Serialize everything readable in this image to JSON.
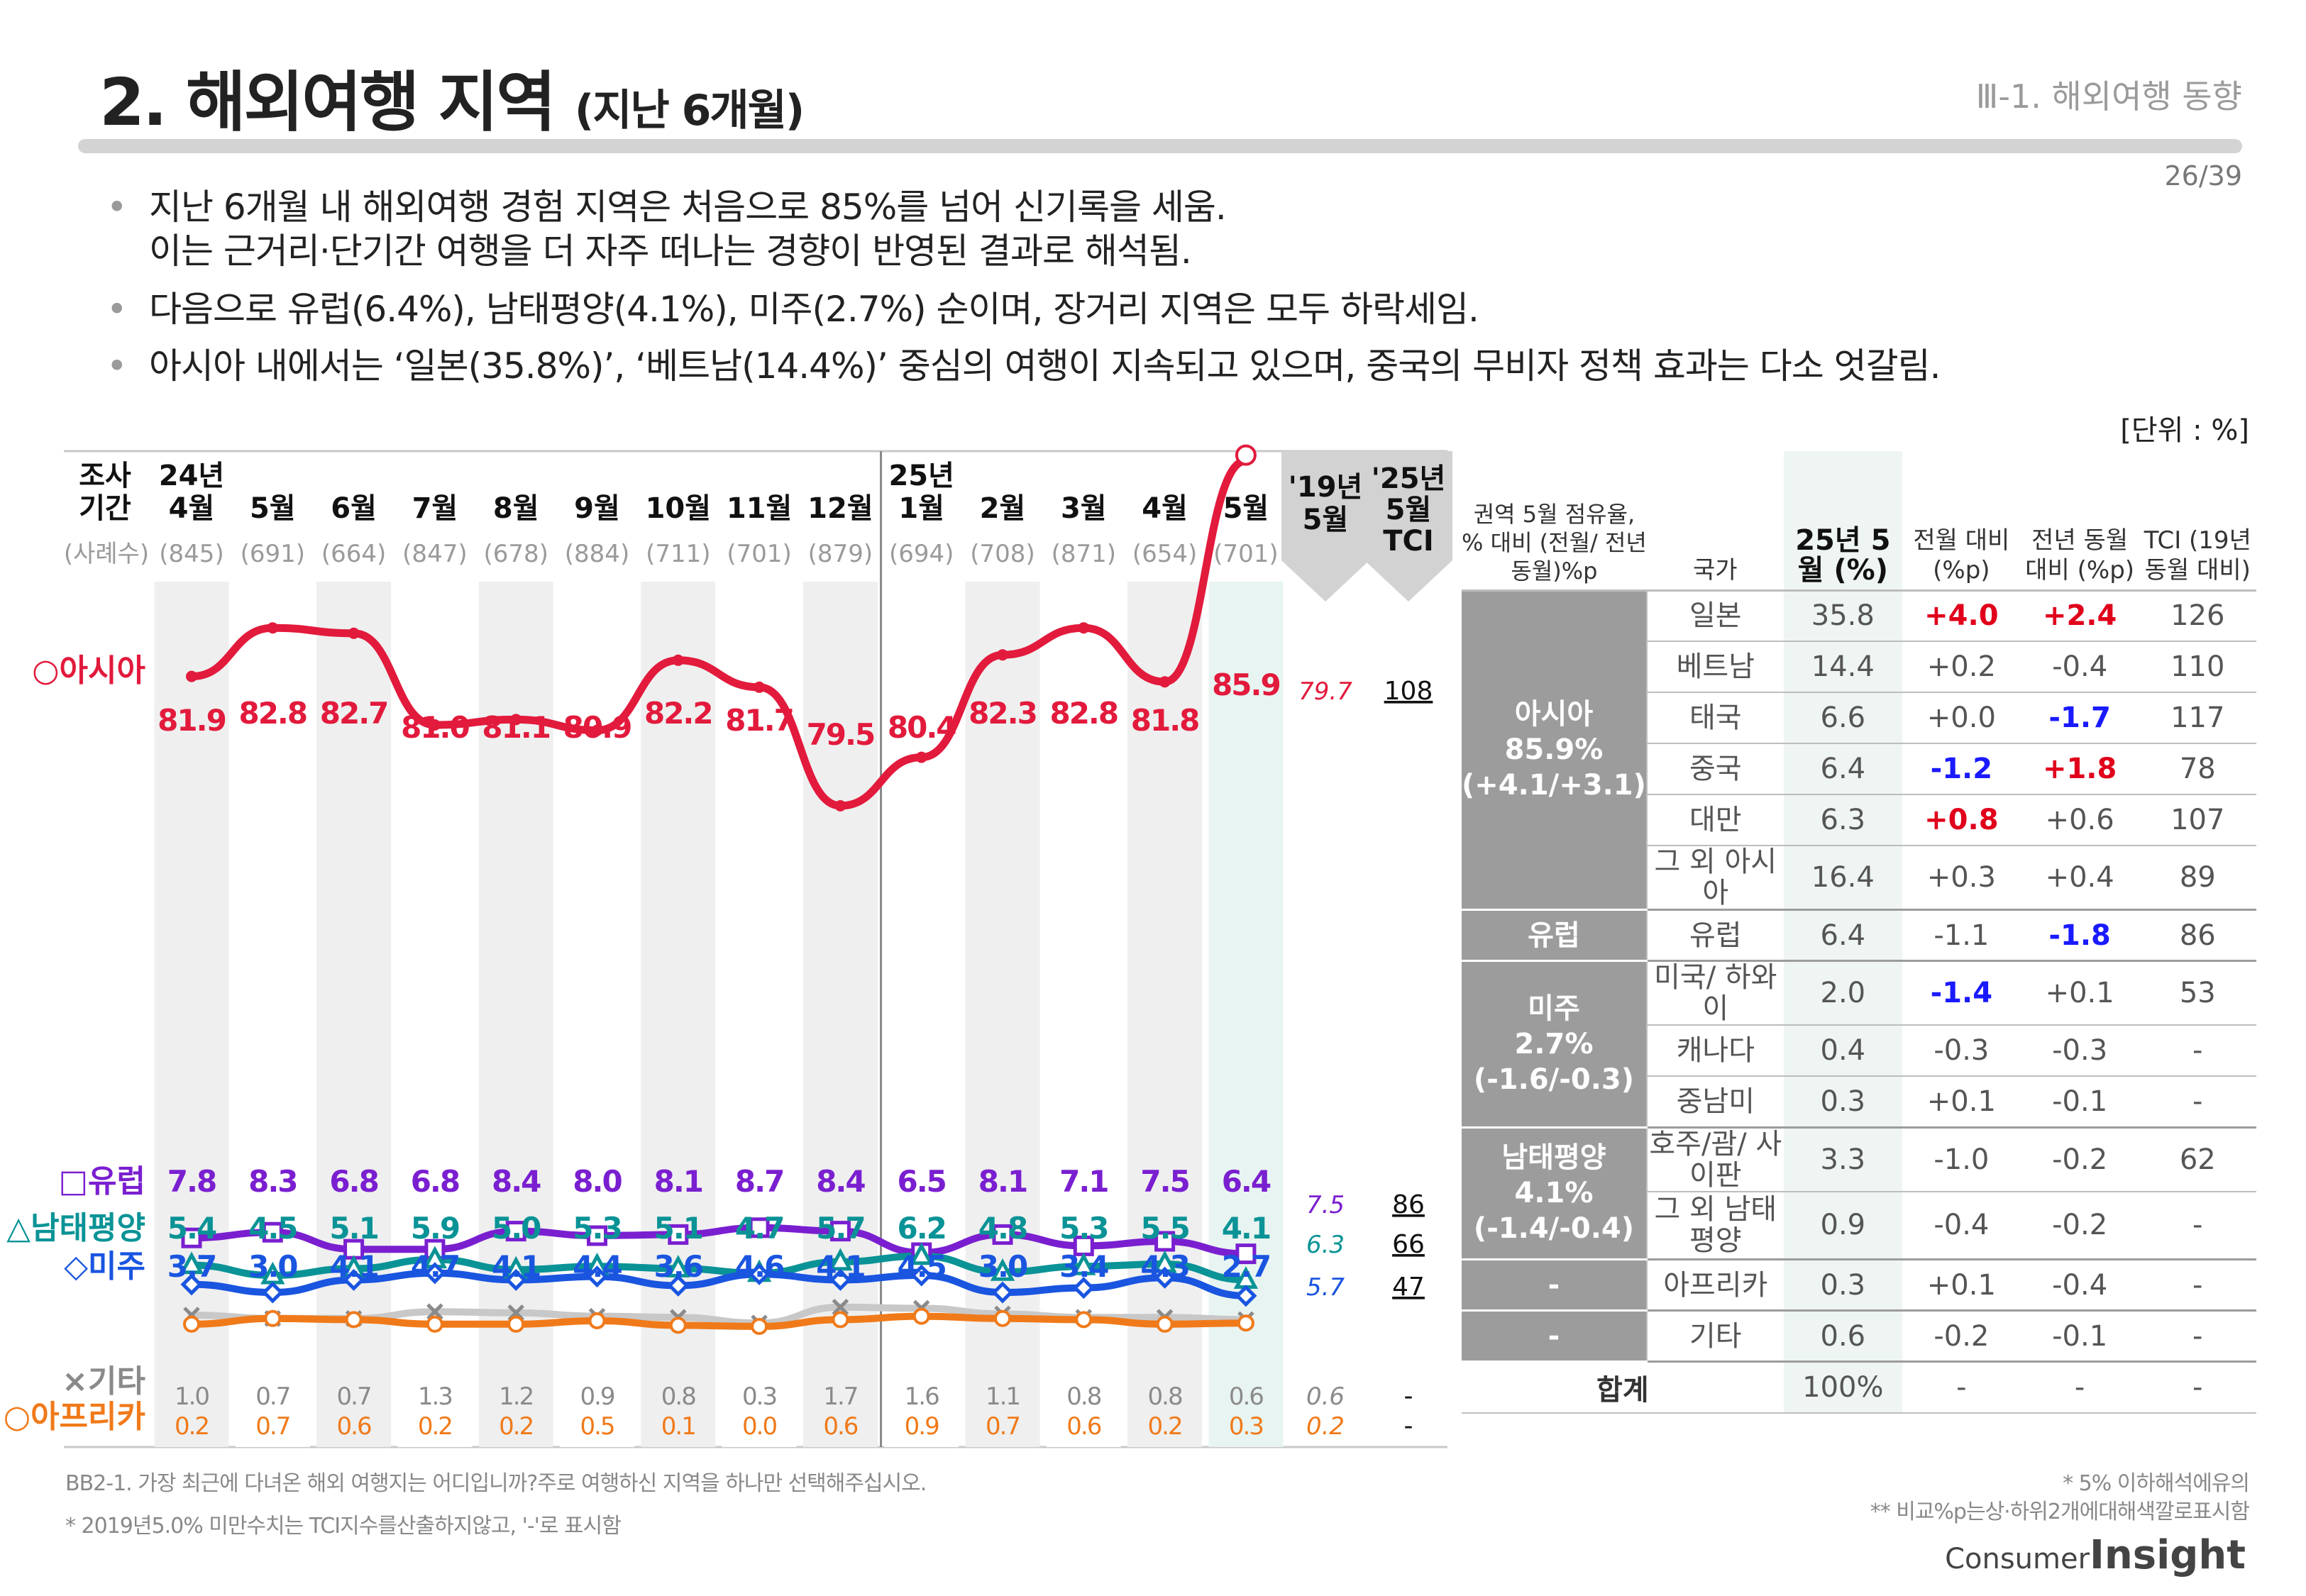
{
  "header": {
    "title": "2. 해외여행 지역",
    "title_sub": "(지난 6개월)",
    "section": "Ⅲ-1. 해외여행 동향",
    "page": "26/39"
  },
  "bullets": [
    "지난 6개월 내 해외여행 경험 지역은 처음으로 85%를 넘어 신기록을 세움.",
    "이는 근거리·단기간 여행을 더 자주 떠나는 경향이 반영된 결과로 해석됨.",
    "다음으로 유럽(6.4%), 남태평양(4.1%), 미주(2.7%) 순이며, 장거리 지역은 모두 하락세임.",
    "아시아 내에서는 ‘일본(35.8%)’, ‘베트남(14.4%)’ 중심의 여행이 지속되고 있으며, 중국의 무비자 정책 효과는 다소 엇갈림."
  ],
  "unit": "[단위 : %]",
  "chart_data": {
    "type": "line",
    "title": "해외여행 지역 (지난 6개월)",
    "header_label": [
      "조사",
      "기간"
    ],
    "sample_label": "(사례수)",
    "periods": [
      {
        "year": "24년",
        "month": "4월",
        "n": "(845)"
      },
      {
        "year": "",
        "month": "5월",
        "n": "(691)"
      },
      {
        "year": "",
        "month": "6월",
        "n": "(664)"
      },
      {
        "year": "",
        "month": "7월",
        "n": "(847)"
      },
      {
        "year": "",
        "month": "8월",
        "n": "(678)"
      },
      {
        "year": "",
        "month": "9월",
        "n": "(884)"
      },
      {
        "year": "",
        "month": "10월",
        "n": "(711)"
      },
      {
        "year": "",
        "month": "11월",
        "n": "(701)"
      },
      {
        "year": "",
        "month": "12월",
        "n": "(879)"
      },
      {
        "year": "25년",
        "month": "1월",
        "n": "(694)"
      },
      {
        "year": "",
        "month": "2월",
        "n": "(708)"
      },
      {
        "year": "",
        "month": "3월",
        "n": "(871)"
      },
      {
        "year": "",
        "month": "4월",
        "n": "(654)"
      },
      {
        "year": "",
        "month": "5월",
        "n": "(701)"
      }
    ],
    "ref_headers": [
      [
        "'19년",
        "5월"
      ],
      [
        "'25년",
        "5월",
        "TCI"
      ]
    ],
    "series": [
      {
        "name": "아시아",
        "marker": "○",
        "color": "#e21a3c",
        "values": [
          81.9,
          82.8,
          82.7,
          81.0,
          81.1,
          80.9,
          82.2,
          81.7,
          79.5,
          80.4,
          82.3,
          82.8,
          81.8,
          85.9
        ],
        "labels": [
          "81.9",
          "82.8",
          "82.7",
          "81.0",
          "81.1",
          "80.9",
          "82.2",
          "81.7",
          "79.5",
          "80.4",
          "82.3",
          "82.8",
          "81.8",
          "85.9"
        ],
        "ref": "79.7",
        "tci": "108"
      },
      {
        "name": "유럽",
        "marker": "□",
        "color": "#7a1fd0",
        "values": [
          7.8,
          8.3,
          6.8,
          6.8,
          8.4,
          8.0,
          8.1,
          8.7,
          8.4,
          6.5,
          8.1,
          7.1,
          7.5,
          6.4
        ],
        "labels": [
          "7.8",
          "8.3",
          "6.8",
          "6.8",
          "8.4",
          "8.0",
          "8.1",
          "8.7",
          "8.4",
          "6.5",
          "8.1",
          "7.1",
          "7.5",
          "6.4"
        ],
        "ref": "7.5",
        "tci": "86"
      },
      {
        "name": "남태평양",
        "marker": "△",
        "color": "#0a9396",
        "values": [
          5.4,
          4.5,
          5.1,
          5.9,
          5.0,
          5.3,
          5.1,
          4.7,
          5.7,
          6.2,
          4.8,
          5.3,
          5.5,
          4.1
        ],
        "labels": [
          "5.4",
          "4.5",
          "5.1",
          "5.9",
          "5.0",
          "5.3",
          "5.1",
          "4.7",
          "5.7",
          "6.2",
          "4.8",
          "5.3",
          "5.5",
          "4.1"
        ],
        "ref": "6.3",
        "tci": "66"
      },
      {
        "name": "미주",
        "marker": "◇",
        "color": "#1a55e0",
        "values": [
          3.7,
          3.0,
          4.1,
          4.7,
          4.1,
          4.4,
          3.6,
          4.6,
          4.1,
          4.5,
          3.0,
          3.4,
          4.3,
          2.7
        ],
        "labels": [
          "3.7",
          "3.0",
          "4.1",
          "4.7",
          "4.1",
          "4.4",
          "3.6",
          "4.6",
          "4.1",
          "4.5",
          "3.0",
          "3.4",
          "4.3",
          "2.7"
        ],
        "ref": "5.7",
        "tci": "47"
      },
      {
        "name": "기타",
        "marker": "×",
        "color": "#8a8a8a",
        "values": [
          1.0,
          0.7,
          0.7,
          1.3,
          1.2,
          0.9,
          0.8,
          0.3,
          1.7,
          1.6,
          1.1,
          0.8,
          0.8,
          0.6
        ],
        "labels": [
          "1.0",
          "0.7",
          "0.7",
          "1.3",
          "1.2",
          "0.9",
          "0.8",
          "0.3",
          "1.7",
          "1.6",
          "1.1",
          "0.8",
          "0.8",
          "0.6"
        ],
        "ref": "0.6",
        "tci": "-"
      },
      {
        "name": "아프리카",
        "marker": "○",
        "color": "#f07a1a",
        "values": [
          0.2,
          0.7,
          0.6,
          0.2,
          0.2,
          0.5,
          0.1,
          0.0,
          0.6,
          0.9,
          0.7,
          0.6,
          0.2,
          0.3
        ],
        "labels": [
          "0.2",
          "0.7",
          "0.6",
          "0.2",
          "0.2",
          "0.5",
          "0.1",
          "0.0",
          "0.6",
          "0.9",
          "0.7",
          "0.6",
          "0.2",
          "0.3"
        ],
        "ref": "0.2",
        "tci": "-"
      }
    ]
  },
  "region_table": {
    "headers": {
      "group": "권역 5월 점유율, % 대비 (전월/ 전년동월)%p",
      "country": "국가",
      "cur": "25년 5월 (%)",
      "mom": "전월 대비 (%p)",
      "yoy": "전년 동월 대비 (%p)",
      "tci": "TCI (19년 동월 대비)"
    },
    "groups": [
      {
        "name": "아시아",
        "share": "85.9%",
        "delta": "(+4.1/+3.1)",
        "rows": [
          {
            "country": "일본",
            "cur": "35.8",
            "mom": "+4.0",
            "mom_c": "pos",
            "yoy": "+2.4",
            "yoy_c": "pos",
            "tci": "126"
          },
          {
            "country": "베트남",
            "cur": "14.4",
            "mom": "+0.2",
            "mom_c": "",
            "yoy": "-0.4",
            "yoy_c": "",
            "tci": "110"
          },
          {
            "country": "태국",
            "cur": "6.6",
            "mom": "+0.0",
            "mom_c": "",
            "yoy": "-1.7",
            "yoy_c": "neg",
            "tci": "117"
          },
          {
            "country": "중국",
            "cur": "6.4",
            "mom": "-1.2",
            "mom_c": "neg",
            "yoy": "+1.8",
            "yoy_c": "pos",
            "tci": "78"
          },
          {
            "country": "대만",
            "cur": "6.3",
            "mom": "+0.8",
            "mom_c": "pos",
            "yoy": "+0.6",
            "yoy_c": "",
            "tci": "107"
          },
          {
            "country": "그 외 아시아",
            "cur": "16.4",
            "mom": "+0.3",
            "mom_c": "",
            "yoy": "+0.4",
            "yoy_c": "",
            "tci": "89"
          }
        ]
      },
      {
        "name": "유럽",
        "share": "",
        "delta": "",
        "rows": [
          {
            "country": "유럽",
            "cur": "6.4",
            "mom": "-1.1",
            "mom_c": "",
            "yoy": "-1.8",
            "yoy_c": "neg",
            "tci": "86"
          }
        ]
      },
      {
        "name": "미주",
        "share": "2.7%",
        "delta": "(-1.6/-0.3)",
        "rows": [
          {
            "country": "미국/ 하와이",
            "cur": "2.0",
            "mom": "-1.4",
            "mom_c": "neg",
            "yoy": "+0.1",
            "yoy_c": "",
            "tci": "53"
          },
          {
            "country": "캐나다",
            "cur": "0.4",
            "mom": "-0.3",
            "mom_c": "",
            "yoy": "-0.3",
            "yoy_c": "",
            "tci": "-"
          },
          {
            "country": "중남미",
            "cur": "0.3",
            "mom": "+0.1",
            "mom_c": "",
            "yoy": "-0.1",
            "yoy_c": "",
            "tci": "-"
          }
        ]
      },
      {
        "name": "남태평양",
        "share": "4.1%",
        "delta": "(-1.4/-0.4)",
        "rows": [
          {
            "country": "호주/괌/ 사이판",
            "cur": "3.3",
            "mom": "-1.0",
            "mom_c": "",
            "yoy": "-0.2",
            "yoy_c": "",
            "tci": "62"
          },
          {
            "country": "그 외 남태평양",
            "cur": "0.9",
            "mom": "-0.4",
            "mom_c": "",
            "yoy": "-0.2",
            "yoy_c": "",
            "tci": "-"
          }
        ]
      },
      {
        "name": "-",
        "share": "",
        "delta": "",
        "rows": [
          {
            "country": "아프리카",
            "cur": "0.3",
            "mom": "+0.1",
            "mom_c": "",
            "yoy": "-0.4",
            "yoy_c": "",
            "tci": "-"
          }
        ]
      },
      {
        "name": "-",
        "share": "",
        "delta": "",
        "rows": [
          {
            "country": "기타",
            "cur": "0.6",
            "mom": "-0.2",
            "mom_c": "",
            "yoy": "-0.1",
            "yoy_c": "",
            "tci": "-"
          }
        ]
      }
    ],
    "total": {
      "label": "합계",
      "cur": "100%",
      "mom": "-",
      "yoy": "-",
      "tci": "-"
    }
  },
  "footnotes": {
    "question": "BB2-1. 가장 최근에 다녀온 해외 여행지는 어디입니까?주로 여행하신 지역을 하나만 선택해주십시오.",
    "tci_note": "* 2019년5.0% 미만수치는 TCI지수를산출하지않고, '-'로 표시함",
    "caution": "* 5% 이하해석에유의",
    "color_note": "** 비교%p는상·하위2개에대해색깔로표시함"
  },
  "logo": {
    "prefix": "Consumer",
    "main": "Insight"
  }
}
